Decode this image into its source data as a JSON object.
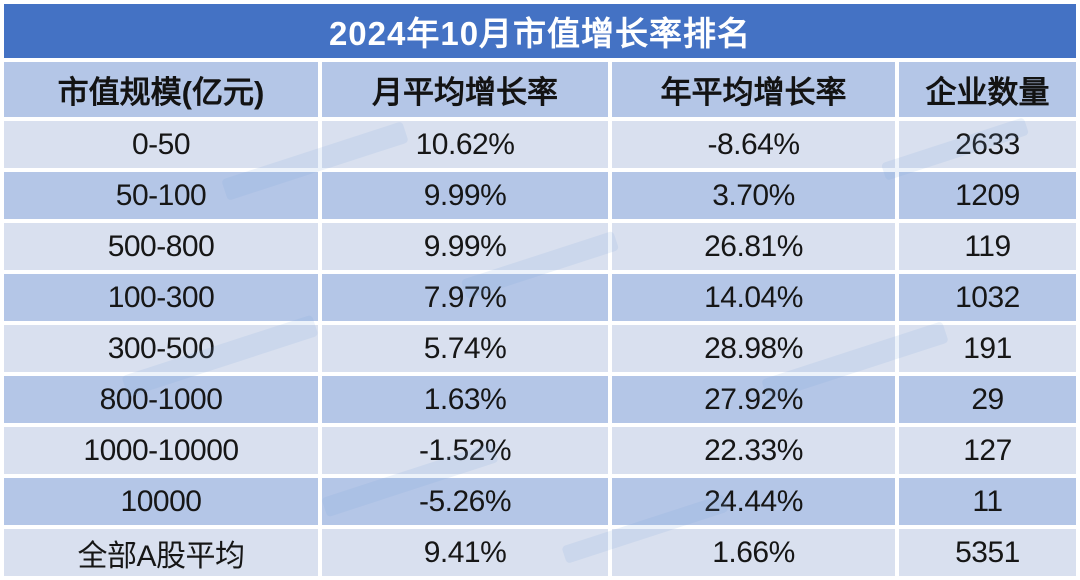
{
  "chart_data": {
    "type": "table",
    "title": "2024年10月市值增长率排名",
    "columns": [
      "市值规模(亿元)",
      "月平均增长率",
      "年平均增长率",
      "企业数量"
    ],
    "rows": [
      [
        "0-50",
        "10.62%",
        "-8.64%",
        "2633"
      ],
      [
        "50-100",
        "9.99%",
        "3.70%",
        "1209"
      ],
      [
        "500-800",
        "9.99%",
        "26.81%",
        "119"
      ],
      [
        "100-300",
        "7.97%",
        "14.04%",
        "1032"
      ],
      [
        "300-500",
        "5.74%",
        "28.98%",
        "191"
      ],
      [
        "800-1000",
        "1.63%",
        "27.92%",
        "29"
      ],
      [
        "1000-10000",
        "-1.52%",
        "22.33%",
        "127"
      ],
      [
        "10000",
        "-5.26%",
        "24.44%",
        "11"
      ],
      [
        "全部A股平均",
        "9.41%",
        "1.66%",
        "5351"
      ]
    ]
  },
  "colors": {
    "title_bg": "#4472C4",
    "title_text": "#FFFFFF",
    "row_even": "#B4C6E7",
    "row_odd": "#D9E0EF",
    "gridline": "#FFFFFF",
    "body_text": "#161616"
  }
}
